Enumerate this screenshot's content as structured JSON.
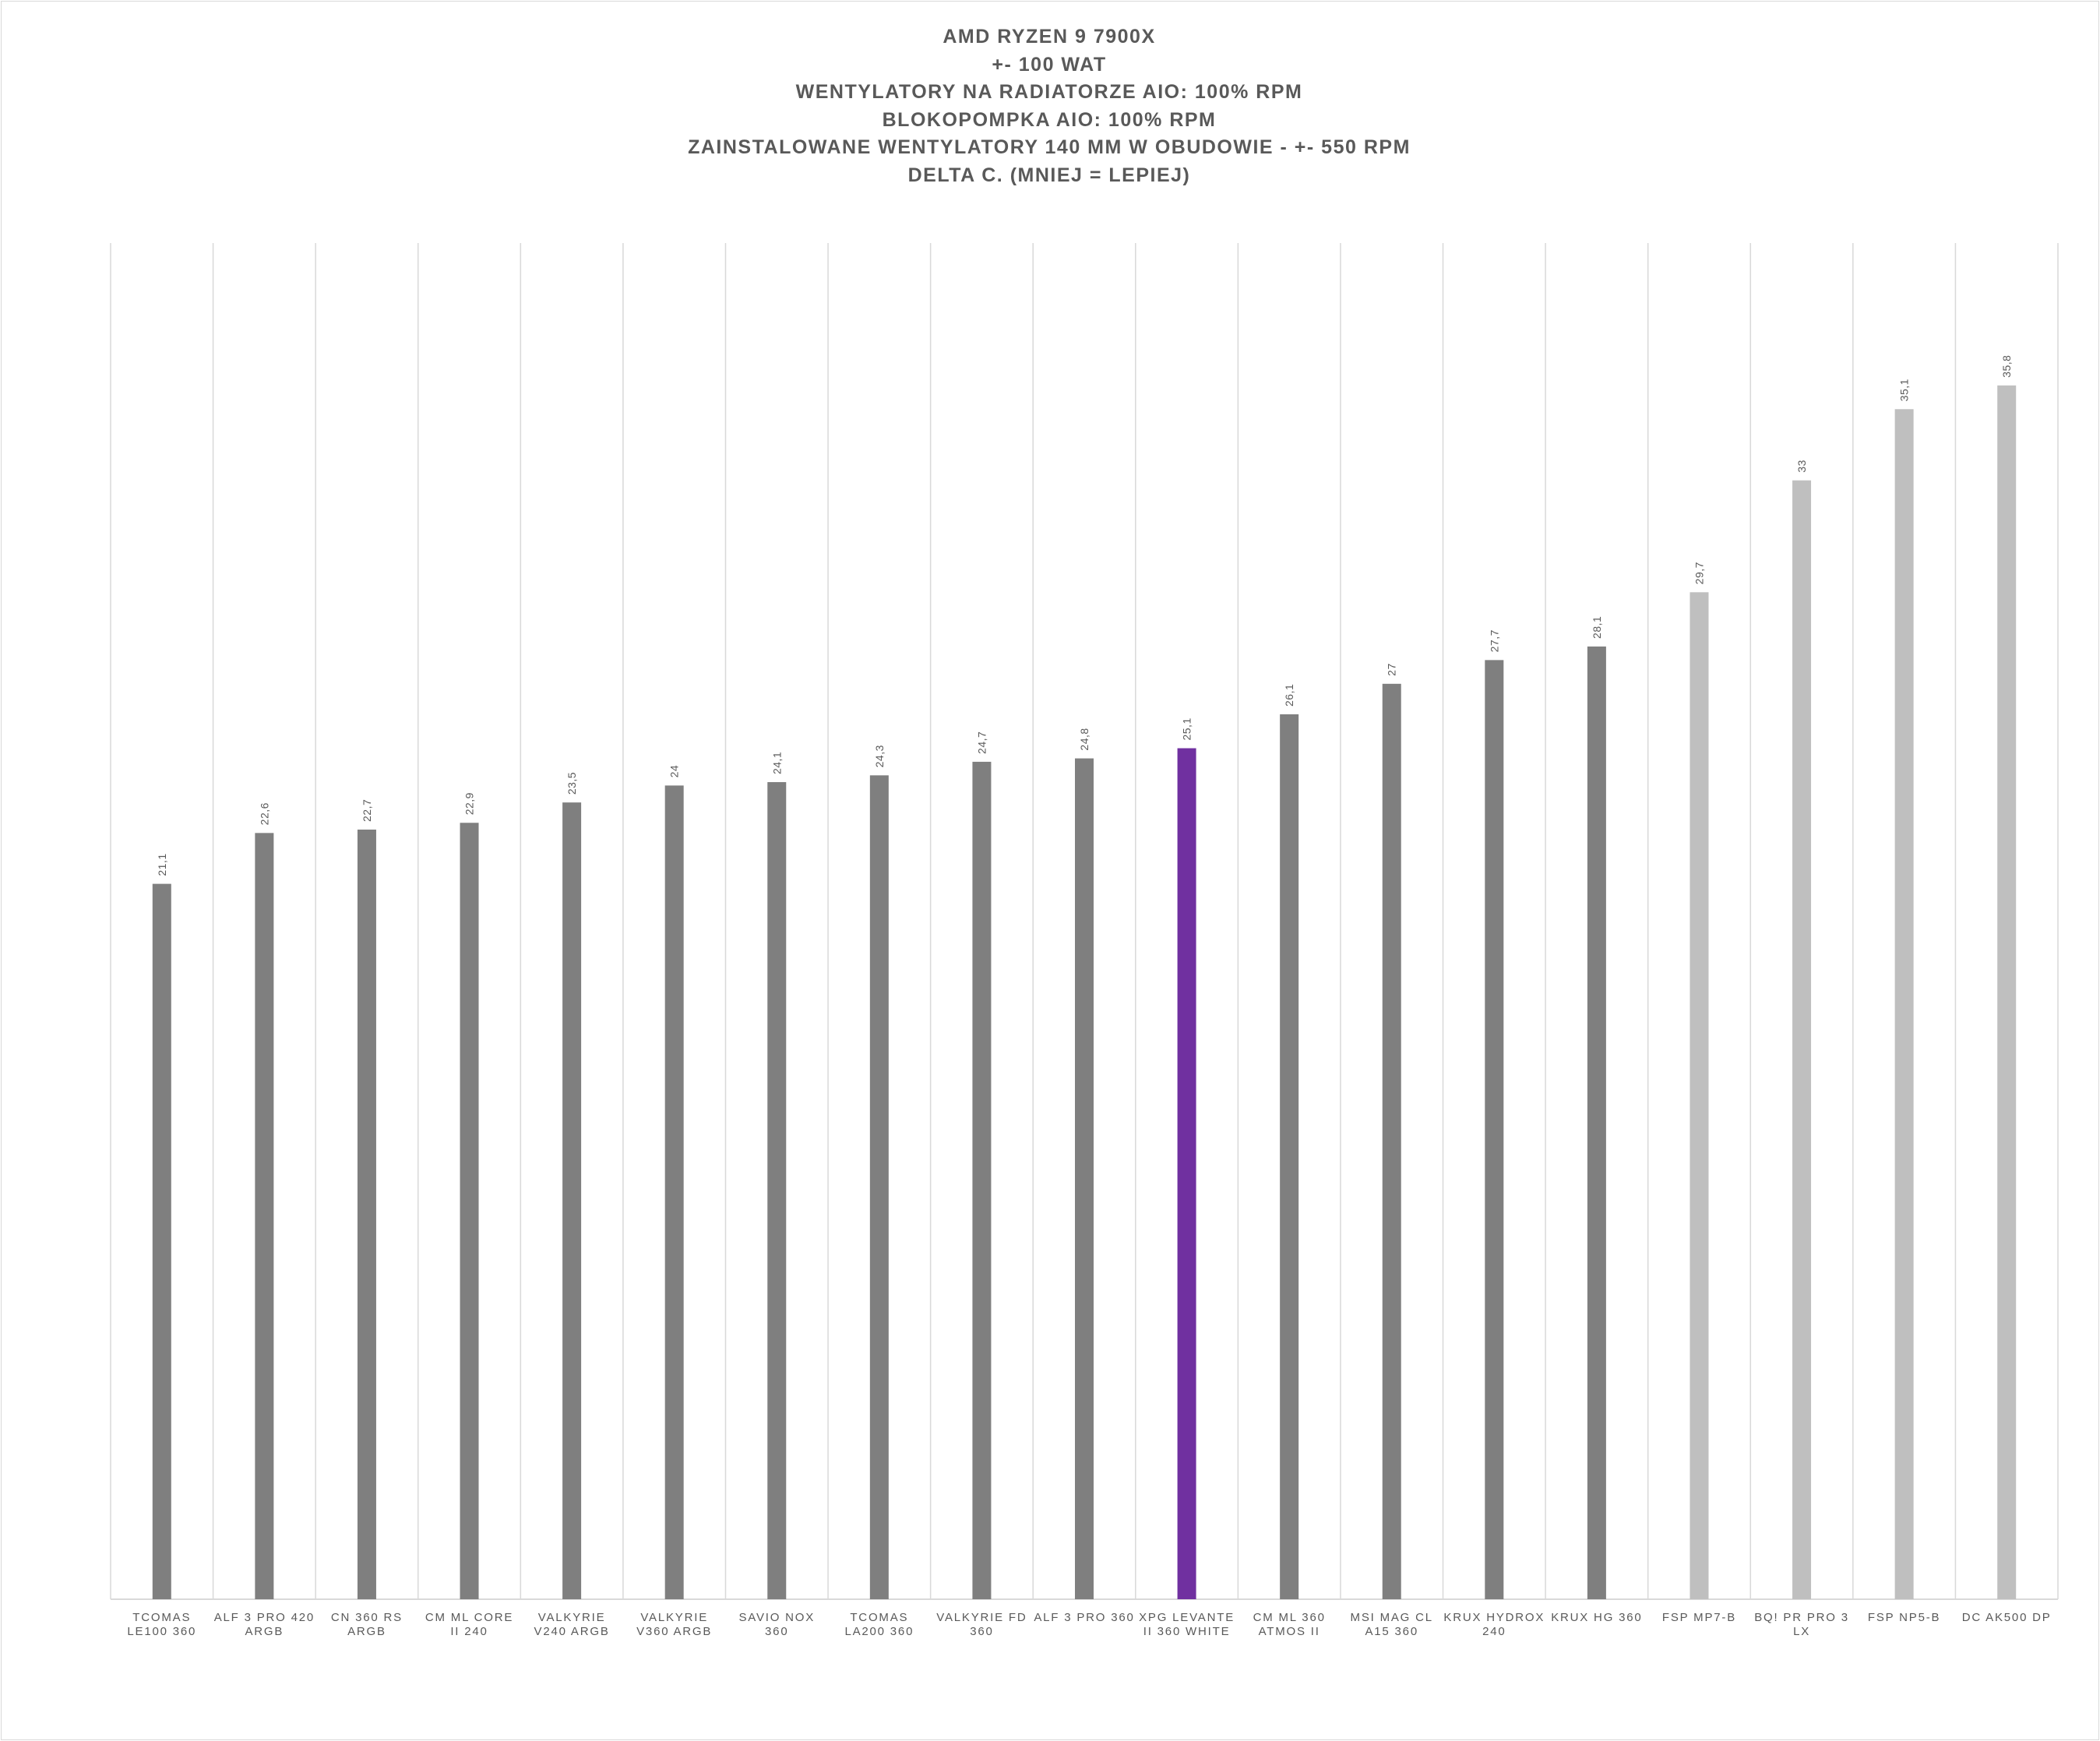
{
  "chart_data": {
    "type": "bar",
    "title": [
      "AMD RYZEN 9 7900X",
      "+- 100 WAT",
      "WENTYLATORY  NA RADIATORZE  AIO: 100% RPM",
      "BLOKOPOMPKA  AIO: 100% RPM",
      "ZAINSTALOWANE  WENTYLATORY  140 MM W OBUDOWIE - +- 550 RPM",
      "DELTA  C. (MNIEJ = LEPIEJ)"
    ],
    "categories": [
      [
        "TCOMAS",
        "LE100 360"
      ],
      [
        "ALF 3 PRO 420",
        "ARGB"
      ],
      [
        "CN 360 RS",
        "ARGB"
      ],
      [
        "CM ML CORE",
        "II 240"
      ],
      [
        "VALKYRIE",
        "V240 ARGB"
      ],
      [
        "VALKYRIE",
        "V360 ARGB"
      ],
      [
        "SAVIO NOX",
        "360"
      ],
      [
        "TCOMAS",
        "LA200 360"
      ],
      [
        "VALKYRIE FD",
        "360"
      ],
      [
        "ALF 3 PRO 360"
      ],
      [
        "XPG LEVANTE",
        "II 360 WHITE"
      ],
      [
        "CM ML 360",
        "ATMOS II"
      ],
      [
        "MSI MAG CL",
        "A15 360"
      ],
      [
        "KRUX HYDROX",
        "240"
      ],
      [
        "KRUX HG 360"
      ],
      [
        "FSP MP7-B"
      ],
      [
        "BQ! PR PRO 3",
        "LX"
      ],
      [
        "FSP NP5-B"
      ],
      [
        "DC AK500 DP"
      ]
    ],
    "values": [
      21.1,
      22.6,
      22.7,
      22.9,
      23.5,
      24,
      24.1,
      24.3,
      24.7,
      24.8,
      25.1,
      26.1,
      27,
      27.7,
      28.1,
      29.7,
      33,
      35.1,
      35.8
    ],
    "value_labels": [
      "21,1",
      "22,6",
      "22,7",
      "22,9",
      "23,5",
      "24",
      "24,1",
      "24,3",
      "24,7",
      "24,8",
      "25,1",
      "26,1",
      "27",
      "27,7",
      "28,1",
      "29,7",
      "33",
      "35,1",
      "35,8"
    ],
    "bar_colors": [
      "#7f7f7f",
      "#7f7f7f",
      "#7f7f7f",
      "#7f7f7f",
      "#7f7f7f",
      "#7f7f7f",
      "#7f7f7f",
      "#7f7f7f",
      "#7f7f7f",
      "#7f7f7f",
      "#7030a0",
      "#7f7f7f",
      "#7f7f7f",
      "#7f7f7f",
      "#7f7f7f",
      "#bfbfbf",
      "#bfbfbf",
      "#bfbfbf",
      "#bfbfbf"
    ],
    "ylim": [
      0,
      40
    ],
    "grid": true,
    "legend": false
  }
}
